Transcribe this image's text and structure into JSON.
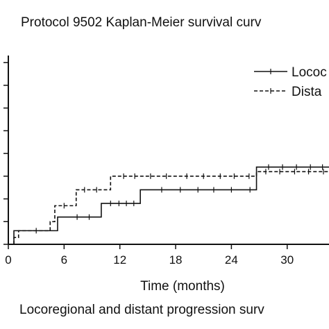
{
  "chart_data": {
    "type": "line",
    "title": "Protocol 9502 Kaplan-Meier survival curv",
    "xlabel": "Time (months)",
    "caption": "Locoregional and distant progression surv",
    "xlim": [
      0,
      34.5
    ],
    "ylim": [
      0,
      0.825
    ],
    "xticks": [
      0,
      6,
      12,
      18,
      24,
      30
    ],
    "yticks": [
      0,
      0.1,
      0.2,
      0.3,
      0.4,
      0.5,
      0.6,
      0.7,
      0.8
    ],
    "grid": false,
    "legend_position": "top-right",
    "series": [
      {
        "name": "Lococ",
        "style": "solid",
        "color": "#111111",
        "steps": [
          [
            0.0,
            0.0
          ],
          [
            0.6,
            0.06
          ],
          [
            5.3,
            0.12
          ],
          [
            10.0,
            0.18
          ],
          [
            14.2,
            0.24
          ],
          [
            26.7,
            0.34
          ],
          [
            34.5,
            0.34
          ]
        ],
        "censored_x": [
          3.0,
          7.4,
          8.7,
          11.0,
          11.9,
          12.7,
          13.5,
          16.5,
          18.5,
          20.4,
          22.1,
          24.0,
          26.0,
          28.0,
          29.5,
          31.0,
          32.5,
          33.8
        ]
      },
      {
        "name": "Dista",
        "style": "dashed",
        "color": "#111111",
        "steps": [
          [
            0.0,
            0.0
          ],
          [
            0.6,
            0.03
          ],
          [
            1.1,
            0.06
          ],
          [
            4.5,
            0.1
          ],
          [
            5.0,
            0.17
          ],
          [
            7.3,
            0.24
          ],
          [
            11.0,
            0.3
          ],
          [
            26.7,
            0.32
          ],
          [
            34.5,
            0.32
          ]
        ],
        "censored_x": [
          6.0,
          8.2,
          9.5,
          12.4,
          13.6,
          15.3,
          17.0,
          19.2,
          21.0,
          22.8,
          24.3,
          25.9,
          27.7,
          29.2,
          30.8,
          32.3,
          33.9
        ]
      }
    ]
  }
}
